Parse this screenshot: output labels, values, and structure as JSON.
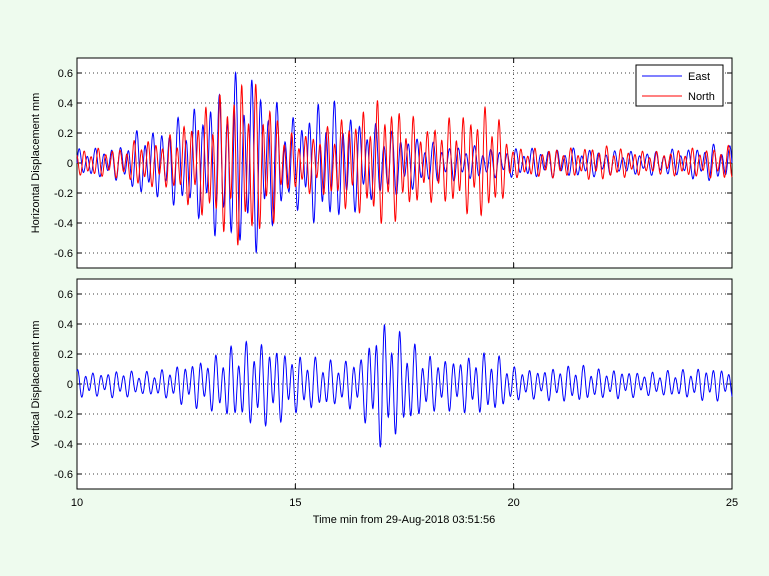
{
  "figure": {
    "background": "#eefbee"
  },
  "chart_data": [
    {
      "type": "line",
      "id": "horizontal",
      "xlabel": "",
      "ylabel": "Horizontal Displacement mm",
      "xlim": [
        10,
        25
      ],
      "ylim": [
        -0.7,
        0.7
      ],
      "xticks": [
        10,
        15,
        20,
        25
      ],
      "xtick_labels_visible": false,
      "yticks": [
        -0.6,
        -0.4,
        -0.2,
        0,
        0.2,
        0.4,
        0.6
      ],
      "ytick_labels": [
        "-0.6",
        "-0.4",
        "-0.2",
        "0",
        "0.2",
        "0.4",
        "0.6"
      ],
      "grid": true,
      "legend": "top-right",
      "series": [
        {
          "name": "East",
          "color": "#0000ff",
          "x": [
            10.0,
            10.5,
            11.0,
            11.5,
            11.8,
            12.2,
            12.6,
            13.0,
            13.4,
            13.8,
            14.0,
            14.2,
            14.5,
            14.8,
            15.2,
            15.6,
            16.0,
            16.5,
            17.0,
            17.5,
            18.0,
            18.5,
            19.0,
            19.5,
            20.0,
            20.5,
            21.0,
            21.5,
            22.0,
            22.5,
            23.0,
            23.5,
            24.0,
            24.5,
            25.0
          ],
          "amplitude": [
            0.1,
            0.1,
            0.12,
            0.25,
            0.22,
            0.3,
            0.35,
            0.45,
            0.55,
            0.64,
            0.65,
            0.55,
            0.45,
            0.3,
            0.35,
            0.45,
            0.4,
            0.3,
            0.25,
            0.2,
            0.15,
            0.12,
            0.12,
            0.1,
            0.1,
            0.1,
            0.1,
            0.1,
            0.09,
            0.08,
            0.08,
            0.09,
            0.1,
            0.13,
            0.12
          ]
        },
        {
          "name": "North",
          "color": "#ff0000",
          "x": [
            10.0,
            10.5,
            11.0,
            11.5,
            11.8,
            12.2,
            12.6,
            13.0,
            13.4,
            13.8,
            14.0,
            14.2,
            14.5,
            14.8,
            15.2,
            15.6,
            16.0,
            16.5,
            17.0,
            17.5,
            18.0,
            18.5,
            19.0,
            19.5,
            20.0,
            20.5,
            21.0,
            21.5,
            22.0,
            22.5,
            23.0,
            23.5,
            24.0,
            24.5,
            25.0
          ],
          "amplitude": [
            0.08,
            0.1,
            0.1,
            0.18,
            0.15,
            0.2,
            0.3,
            0.4,
            0.5,
            0.58,
            0.55,
            0.5,
            0.4,
            0.2,
            0.2,
            0.22,
            0.3,
            0.35,
            0.45,
            0.35,
            0.25,
            0.3,
            0.35,
            0.4,
            0.1,
            0.1,
            0.1,
            0.1,
            0.12,
            0.1,
            0.08,
            0.08,
            0.1,
            0.1,
            0.12
          ]
        }
      ]
    },
    {
      "type": "line",
      "id": "vertical",
      "xlabel": "Time min from 29-Aug-2018 03:51:56",
      "ylabel": "Vertical Displacement mm",
      "xlim": [
        10,
        25
      ],
      "ylim": [
        -0.7,
        0.7
      ],
      "xticks": [
        10,
        15,
        20,
        25
      ],
      "xtick_labels": [
        "10",
        "15",
        "20",
        "25"
      ],
      "yticks": [
        -0.6,
        -0.4,
        -0.2,
        0,
        0.2,
        0.4,
        0.6
      ],
      "ytick_labels": [
        "-0.6",
        "-0.4",
        "-0.2",
        "0",
        "0.2",
        "0.4",
        "0.6"
      ],
      "grid": true,
      "series": [
        {
          "name": "",
          "color": "#0000ff",
          "x": [
            10.0,
            10.5,
            11.0,
            11.5,
            12.0,
            12.5,
            13.0,
            13.5,
            14.0,
            14.5,
            15.0,
            15.5,
            16.0,
            16.5,
            16.8,
            17.0,
            17.3,
            17.6,
            18.0,
            18.5,
            19.0,
            19.5,
            20.0,
            20.5,
            21.0,
            21.5,
            22.0,
            22.5,
            23.0,
            23.5,
            24.0,
            24.5,
            25.0
          ],
          "amplitude": [
            0.1,
            0.08,
            0.1,
            0.08,
            0.1,
            0.15,
            0.18,
            0.25,
            0.3,
            0.28,
            0.2,
            0.18,
            0.15,
            0.2,
            0.38,
            0.45,
            0.38,
            0.3,
            0.2,
            0.18,
            0.2,
            0.22,
            0.12,
            0.1,
            0.12,
            0.13,
            0.1,
            0.1,
            0.08,
            0.09,
            0.1,
            0.12,
            0.1
          ]
        }
      ]
    }
  ]
}
